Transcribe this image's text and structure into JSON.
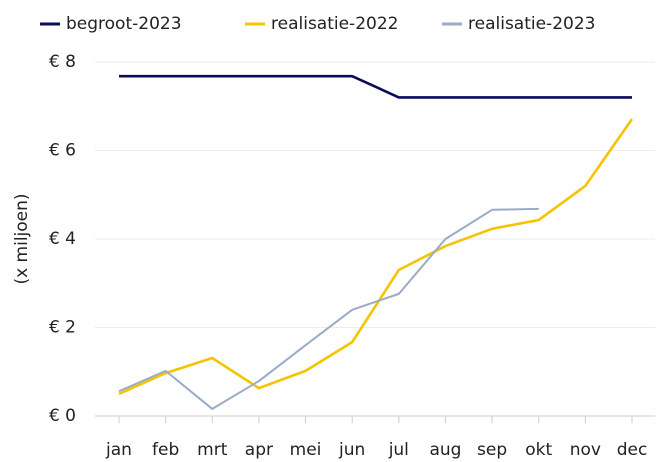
{
  "chart_data": {
    "type": "line",
    "y_label": "(x miljoen)",
    "categories": [
      "jan",
      "feb",
      "mrt",
      "apr",
      "mei",
      "jun",
      "jul",
      "aug",
      "sep",
      "okt",
      "nov",
      "dec"
    ],
    "series": [
      {
        "name": "begroot-2023",
        "color": "#0b0b5c",
        "values": [
          7.68,
          7.68,
          7.68,
          7.68,
          7.68,
          7.68,
          7.2,
          7.2,
          7.2,
          7.2,
          7.2,
          7.2
        ]
      },
      {
        "name": "realisatie-2022",
        "color": "#f5c400",
        "values": [
          0.5,
          0.97,
          1.31,
          0.63,
          1.02,
          1.67,
          3.3,
          3.84,
          4.23,
          4.43,
          5.2,
          6.71
        ]
      },
      {
        "name": "realisatie-2023",
        "color": "#9babc6",
        "values": [
          0.56,
          1.02,
          0.16,
          0.79,
          1.6,
          2.4,
          2.76,
          4.0,
          4.66,
          4.68,
          null,
          null
        ]
      }
    ],
    "ylim": [
      0,
      8
    ],
    "yticks": [
      {
        "value": 0,
        "label": "€ 0"
      },
      {
        "value": 2,
        "label": "€ 2"
      },
      {
        "value": 4,
        "label": "€ 4"
      },
      {
        "value": 6,
        "label": "€ 6"
      },
      {
        "value": 8,
        "label": "€ 8"
      }
    ],
    "grid": true,
    "legend": "top"
  }
}
